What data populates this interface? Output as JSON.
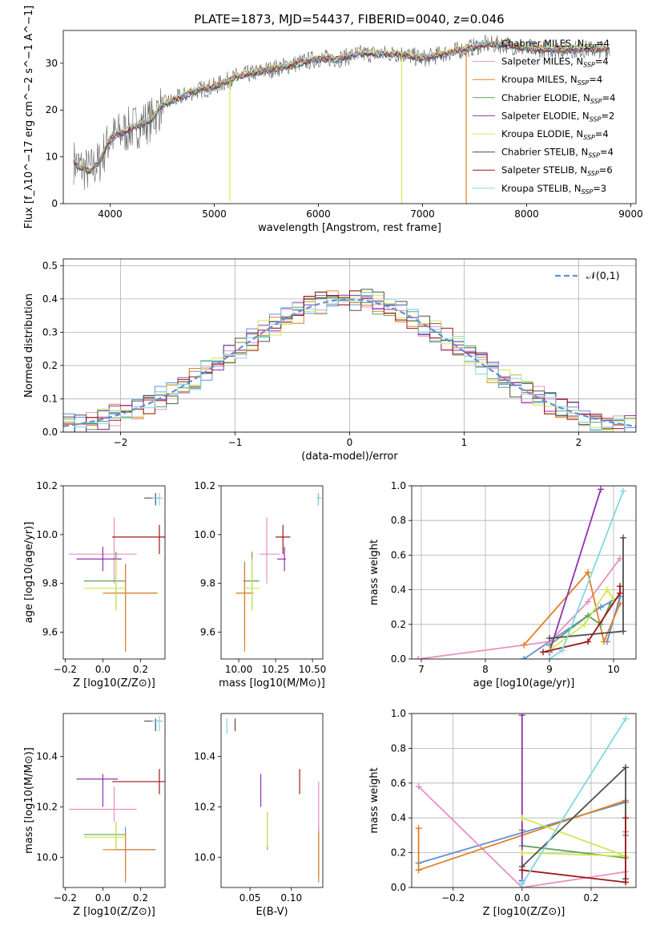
{
  "title": "PLATE=1873, MJD=54437, FIBERID=0040, z=0.046",
  "colors": {
    "Chabrier MILES": "#6090d8",
    "Salpeter MILES": "#e890c0",
    "Kroupa MILES": "#e08020",
    "Chabrier ELODIE": "#60a060",
    "Salpeter ELODIE": "#9030b0",
    "Kroupa ELODIE": "#d0e850",
    "Chabrier STELIB": "#505050",
    "Salpeter STELIB": "#a01818",
    "Kroupa STELIB": "#80d8e0",
    "normal": "#6090d8"
  },
  "chart_data": [
    {
      "type": "line",
      "title": "PLATE=1873, MJD=54437, FIBERID=0040, z=0.046",
      "xlabel": "wavelength [Angstrom, rest frame]",
      "ylabel": "Flux [f_λ10^−17 erg cm^−2 s^−1 A^−1]",
      "xlim": [
        3550,
        9050
      ],
      "ylim": [
        0,
        37
      ],
      "xticks": [
        "4000",
        "5000",
        "6000",
        "7000",
        "8000",
        "9000"
      ],
      "yticks": [
        "0",
        "10",
        "20",
        "30"
      ],
      "legend_position": "right",
      "series": [
        {
          "name": "Chabrier MILES, N_SSP=4"
        },
        {
          "name": "Salpeter MILES, N_SSP=4"
        },
        {
          "name": "Kroupa MILES, N_SSP=4"
        },
        {
          "name": "Chabrier ELODIE, N_SSP=4"
        },
        {
          "name": "Salpeter ELODIE, N_SSP=2"
        },
        {
          "name": "Kroupa ELODIE, N_SSP=4"
        },
        {
          "name": "Chabrier STELIB, N_SSP=4"
        },
        {
          "name": "Salpeter STELIB, N_SSP=6"
        },
        {
          "name": "Kroupa STELIB, N_SSP=3"
        }
      ],
      "continuum": {
        "x": [
          3650,
          3700,
          3800,
          3900,
          4000,
          4100,
          4200,
          4300,
          4400,
          4500,
          4600,
          4800,
          5000,
          5200,
          5400,
          5600,
          5800,
          6000,
          6200,
          6400,
          6600,
          6800,
          7000,
          7200,
          7400,
          7600,
          7800,
          8000,
          8200,
          8400,
          8600,
          8800
        ],
        "y": [
          9,
          8,
          7,
          9,
          14,
          15,
          16,
          17,
          18,
          21,
          22,
          24,
          25,
          27,
          28,
          29,
          30,
          31,
          31,
          32,
          32,
          32,
          31,
          32,
          33,
          34,
          34,
          33,
          33,
          33,
          33,
          33
        ]
      },
      "dropouts": [
        {
          "x": 5150,
          "y": 0.5
        },
        {
          "x": 6800,
          "y": 0
        },
        {
          "x": 7420,
          "y": 0
        }
      ]
    },
    {
      "type": "bar",
      "xlabel": "(data-model)/error",
      "ylabel": "Normed distribution",
      "xlim": [
        -2.5,
        2.5
      ],
      "ylim": [
        0,
        0.52
      ],
      "xticks": [
        "−2",
        "−1",
        "0",
        "1",
        "2"
      ],
      "yticks": [
        "0.0",
        "0.1",
        "0.2",
        "0.3",
        "0.4",
        "0.5"
      ],
      "grid": true,
      "bin_width": 0.1,
      "legend": "𝒩(0,1)",
      "legend_position": "top-right"
    },
    {
      "type": "scatter",
      "xlabel": "Z [log10(Z/Z⊙)]",
      "ylabel": "age  [log10(age/yr)]",
      "xlim": [
        -0.21,
        0.33
      ],
      "ylim": [
        9.49,
        10.2
      ],
      "xticks": [
        "−0.2",
        "0.0",
        "0.2"
      ],
      "yticks": [
        "9.6",
        "9.8",
        "10.0",
        "10.2"
      ],
      "points": [
        {
          "s": "Chabrier MILES",
          "x": 0.12,
          "y": 9.76,
          "ex": [
            0.06,
            0.29
          ],
          "ey": [
            9.56,
            9.88
          ]
        },
        {
          "s": "Salpeter MILES",
          "x": 0.06,
          "y": 9.92,
          "ex": [
            -0.18,
            0.18
          ],
          "ey": [
            9.8,
            10.07
          ]
        },
        {
          "s": "Kroupa MILES",
          "x": 0.12,
          "y": 9.76,
          "ex": [
            0.0,
            0.29
          ],
          "ey": [
            9.52,
            9.88
          ]
        },
        {
          "s": "Chabrier ELODIE",
          "x": 0.07,
          "y": 9.81,
          "ex": [
            -0.1,
            0.12
          ],
          "ey": [
            9.69,
            9.93
          ]
        },
        {
          "s": "Salpeter ELODIE",
          "x": 0.0,
          "y": 9.9,
          "ex": [
            -0.14,
            0.1
          ],
          "ey": [
            9.85,
            9.95
          ]
        },
        {
          "s": "Kroupa ELODIE",
          "x": 0.07,
          "y": 9.78,
          "ex": [
            -0.1,
            0.12
          ],
          "ey": [
            9.69,
            9.9
          ]
        },
        {
          "s": "Chabrier STELIB",
          "x": 0.28,
          "y": 10.15,
          "ex": [
            0.22,
            0.3
          ],
          "ey": [
            10.12,
            10.17
          ]
        },
        {
          "s": "Salpeter STELIB",
          "x": 0.3,
          "y": 9.99,
          "ex": [
            0.05,
            0.33
          ],
          "ey": [
            9.92,
            10.04
          ]
        },
        {
          "s": "Kroupa STELIB",
          "x": 0.3,
          "y": 10.15,
          "ex": [
            0.26,
            0.32
          ],
          "ey": [
            10.12,
            10.17
          ]
        }
      ]
    },
    {
      "type": "scatter",
      "xlabel": "mass [log10(M/M⊙)]",
      "ylabel": "",
      "xlim": [
        9.88,
        10.57
      ],
      "ylim": [
        9.49,
        10.2
      ],
      "xticks": [
        "10.00",
        "10.25",
        "10.50"
      ],
      "yticks": [
        "9.6",
        "9.8",
        "10.0",
        "10.2"
      ],
      "points": [
        {
          "s": "Chabrier MILES",
          "x": 10.04,
          "y": 9.76,
          "ex": [
            9.98,
            10.1
          ],
          "ey": [
            9.56,
            9.89
          ]
        },
        {
          "s": "Salpeter MILES",
          "x": 10.19,
          "y": 9.92,
          "ex": [
            10.14,
            10.28
          ],
          "ey": [
            9.8,
            10.07
          ]
        },
        {
          "s": "Kroupa MILES",
          "x": 10.04,
          "y": 9.76,
          "ex": [
            9.98,
            10.1
          ],
          "ey": [
            9.52,
            9.88
          ]
        },
        {
          "s": "Chabrier ELODIE",
          "x": 10.09,
          "y": 9.81,
          "ex": [
            10.03,
            10.14
          ],
          "ey": [
            9.69,
            9.93
          ]
        },
        {
          "s": "Salpeter ELODIE",
          "x": 10.31,
          "y": 9.9,
          "ex": [
            10.26,
            10.32
          ],
          "ey": [
            9.85,
            9.95
          ]
        },
        {
          "s": "Kroupa ELODIE",
          "x": 10.09,
          "y": 9.78,
          "ex": [
            10.03,
            10.14
          ],
          "ey": [
            9.69,
            9.9
          ]
        },
        {
          "s": "Chabrier STELIB",
          "x": 10.54,
          "y": 10.15,
          "ex": [
            10.53,
            10.55
          ],
          "ey": [
            10.12,
            10.17
          ]
        },
        {
          "s": "Salpeter STELIB",
          "x": 10.3,
          "y": 9.99,
          "ex": [
            10.25,
            10.35
          ],
          "ey": [
            9.92,
            10.04
          ]
        },
        {
          "s": "Kroupa STELIB",
          "x": 10.54,
          "y": 10.15,
          "ex": [
            10.53,
            10.56
          ],
          "ey": [
            10.12,
            10.17
          ]
        }
      ]
    },
    {
      "type": "line",
      "xlabel": "age  [log10(age/yr)]",
      "ylabel": "mass weight",
      "xlim": [
        6.85,
        10.35
      ],
      "ylim": [
        0,
        1.0
      ],
      "xticks": [
        "7",
        "8",
        "9",
        "10"
      ],
      "yticks": [
        "0.0",
        "0.2",
        "0.4",
        "0.6",
        "0.8",
        "1.0"
      ],
      "grid": true,
      "series": [
        {
          "s": "Chabrier MILES",
          "pts": [
            [
              8.6,
              0.0
            ],
            [
              9.8,
              0.3
            ],
            [
              10.1,
              0.36
            ],
            [
              9.9,
              0.1
            ]
          ]
        },
        {
          "s": "Salpeter MILES",
          "pts": [
            [
              6.95,
              0.0
            ],
            [
              9.0,
              0.1
            ],
            [
              9.6,
              0.33
            ],
            [
              10.1,
              0.58
            ]
          ]
        },
        {
          "s": "Kroupa MILES",
          "pts": [
            [
              8.6,
              0.08
            ],
            [
              9.6,
              0.5
            ],
            [
              9.85,
              0.1
            ],
            [
              10.1,
              0.32
            ]
          ]
        },
        {
          "s": "Chabrier ELODIE",
          "pts": [
            [
              9.0,
              0.08
            ],
            [
              9.6,
              0.25
            ],
            [
              9.8,
              0.2
            ],
            [
              9.95,
              0.32
            ]
          ]
        },
        {
          "s": "Salpeter ELODIE",
          "pts": [
            [
              9.0,
              0.04
            ],
            [
              9.8,
              0.98
            ]
          ]
        },
        {
          "s": "Kroupa ELODIE",
          "pts": [
            [
              9.0,
              0.05
            ],
            [
              9.55,
              0.2
            ],
            [
              9.9,
              0.4
            ],
            [
              10.0,
              0.35
            ]
          ]
        },
        {
          "s": "Chabrier STELIB",
          "pts": [
            [
              9.0,
              0.12
            ],
            [
              10.15,
              0.16
            ],
            [
              10.15,
              0.7
            ]
          ]
        },
        {
          "s": "Salpeter STELIB",
          "pts": [
            [
              8.9,
              0.04
            ],
            [
              9.6,
              0.1
            ],
            [
              10.1,
              0.38
            ],
            [
              10.1,
              0.42
            ]
          ]
        },
        {
          "s": "Kroupa STELIB",
          "pts": [
            [
              9.0,
              0.0
            ],
            [
              9.2,
              0.05
            ],
            [
              10.15,
              0.97
            ]
          ]
        }
      ]
    },
    {
      "type": "scatter",
      "xlabel": "Z [log10(Z/Z⊙)]",
      "ylabel": "mass [log10(M/M⊙)]",
      "xlim": [
        -0.21,
        0.33
      ],
      "ylim": [
        9.88,
        10.57
      ],
      "xticks": [
        "−0.2",
        "0.0",
        "0.2"
      ],
      "yticks": [
        "10.0",
        "10.2",
        "10.4"
      ],
      "points": [
        {
          "s": "Chabrier MILES",
          "x": 0.12,
          "y": 10.03,
          "ex": [
            0.06,
            0.28
          ],
          "ey": [
            9.92,
            10.12
          ]
        },
        {
          "s": "Salpeter MILES",
          "x": 0.06,
          "y": 10.19,
          "ex": [
            -0.18,
            0.18
          ],
          "ey": [
            10.14,
            10.28
          ]
        },
        {
          "s": "Kroupa MILES",
          "x": 0.12,
          "y": 10.03,
          "ex": [
            0.0,
            0.28
          ],
          "ey": [
            9.9,
            10.1
          ]
        },
        {
          "s": "Chabrier ELODIE",
          "x": 0.07,
          "y": 10.09,
          "ex": [
            -0.1,
            0.12
          ],
          "ey": [
            10.03,
            10.14
          ]
        },
        {
          "s": "Salpeter ELODIE",
          "x": 0.0,
          "y": 10.31,
          "ex": [
            -0.14,
            0.08
          ],
          "ey": [
            10.2,
            10.33
          ]
        },
        {
          "s": "Kroupa ELODIE",
          "x": 0.07,
          "y": 10.08,
          "ex": [
            -0.1,
            0.12
          ],
          "ey": [
            10.03,
            10.14
          ]
        },
        {
          "s": "Chabrier STELIB",
          "x": 0.28,
          "y": 10.54,
          "ex": [
            0.22,
            0.3
          ],
          "ey": [
            10.5,
            10.55
          ]
        },
        {
          "s": "Salpeter STELIB",
          "x": 0.3,
          "y": 10.3,
          "ex": [
            0.05,
            0.33
          ],
          "ey": [
            10.25,
            10.35
          ]
        },
        {
          "s": "Kroupa STELIB",
          "x": 0.3,
          "y": 10.54,
          "ex": [
            0.26,
            0.32
          ],
          "ey": [
            10.5,
            10.56
          ]
        }
      ]
    },
    {
      "type": "scatter",
      "xlabel": "E(B-V)",
      "ylabel": "",
      "xlim": [
        0.015,
        0.138
      ],
      "ylim": [
        9.88,
        10.57
      ],
      "xticks": [
        "0.05",
        "0.10"
      ],
      "yticks": [
        "10.0",
        "10.2",
        "10.4"
      ],
      "points": [
        {
          "s": "Chabrier MILES",
          "x": 0.133,
          "y": 10.03,
          "ey": [
            9.92,
            10.12
          ]
        },
        {
          "s": "Salpeter MILES",
          "x": 0.133,
          "y": 10.19,
          "ey": [
            10.1,
            10.3
          ]
        },
        {
          "s": "Kroupa MILES",
          "x": 0.133,
          "y": 10.03,
          "ey": [
            9.9,
            10.1
          ]
        },
        {
          "s": "Chabrier ELODIE",
          "x": 0.071,
          "y": 10.1,
          "ey": [
            10.03,
            10.18
          ]
        },
        {
          "s": "Salpeter ELODIE",
          "x": 0.063,
          "y": 10.27,
          "ey": [
            10.2,
            10.33
          ]
        },
        {
          "s": "Kroupa ELODIE",
          "x": 0.071,
          "y": 10.1,
          "ey": [
            10.04,
            10.18
          ]
        },
        {
          "s": "Chabrier STELIB",
          "x": 0.032,
          "y": 10.54,
          "ey": [
            10.5,
            10.55
          ]
        },
        {
          "s": "Salpeter STELIB",
          "x": 0.11,
          "y": 10.3,
          "ey": [
            10.25,
            10.35
          ]
        },
        {
          "s": "Kroupa STELIB",
          "x": 0.022,
          "y": 10.53,
          "ey": [
            10.49,
            10.55
          ]
        }
      ]
    },
    {
      "type": "line",
      "xlabel": "Z [log10(Z/Z⊙)]",
      "ylabel": "mass weight",
      "xlim": [
        -0.32,
        0.33
      ],
      "ylim": [
        0,
        1.0
      ],
      "xticks": [
        "−0.2",
        "0.0",
        "0.2"
      ],
      "yticks": [
        "0.0",
        "0.2",
        "0.4",
        "0.6",
        "0.8",
        "1.0"
      ],
      "grid": true,
      "series": [
        {
          "s": "Chabrier MILES",
          "pts": [
            [
              -0.3,
              0.14
            ],
            [
              0.3,
              0.49
            ],
            [
              0.3,
              0.3
            ]
          ]
        },
        {
          "s": "Salpeter MILES",
          "pts": [
            [
              -0.3,
              0.58
            ],
            [
              0.0,
              0.0
            ],
            [
              0.3,
              0.09
            ]
          ]
        },
        {
          "s": "Kroupa MILES",
          "pts": [
            [
              -0.3,
              0.34
            ],
            [
              -0.3,
              0.1
            ],
            [
              0.3,
              0.5
            ],
            [
              0.3,
              0.32
            ]
          ]
        },
        {
          "s": "Chabrier ELODIE",
          "pts": [
            [
              0.0,
              0.33
            ],
            [
              0.0,
              0.24
            ],
            [
              0.3,
              0.17
            ]
          ]
        },
        {
          "s": "Salpeter ELODIE",
          "pts": [
            [
              0.0,
              0.99
            ],
            [
              0.0,
              0.04
            ]
          ]
        },
        {
          "s": "Kroupa ELODIE",
          "pts": [
            [
              0.0,
              0.4
            ],
            [
              0.3,
              0.18
            ],
            [
              0.0,
              0.2
            ]
          ]
        },
        {
          "s": "Chabrier STELIB",
          "pts": [
            [
              0.0,
              0.12
            ],
            [
              0.3,
              0.69
            ],
            [
              0.3,
              0.05
            ]
          ]
        },
        {
          "s": "Salpeter STELIB",
          "pts": [
            [
              0.0,
              0.1
            ],
            [
              0.3,
              0.03
            ],
            [
              0.3,
              0.4
            ]
          ]
        },
        {
          "s": "Kroupa STELIB",
          "pts": [
            [
              0.0,
              0.03
            ],
            [
              0.0,
              0.02
            ],
            [
              0.3,
              0.97
            ]
          ]
        }
      ]
    }
  ]
}
